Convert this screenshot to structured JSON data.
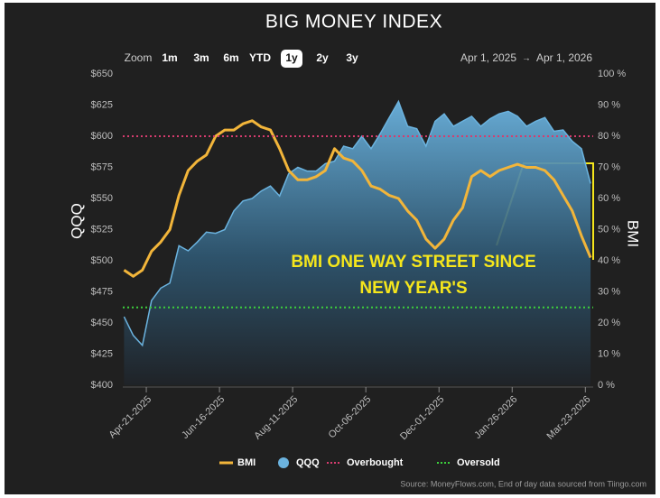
{
  "chart_data": {
    "type": "line",
    "title": "BIG MONEY INDEX",
    "zoom": {
      "label": "Zoom",
      "options": [
        "1m",
        "3m",
        "6m",
        "YTD",
        "1y",
        "2y",
        "3y"
      ],
      "selected": 4
    },
    "range": {
      "start": "Apr 1, 2025",
      "separator": "→",
      "end": "Apr 1, 2026"
    },
    "ylabel": "QQQ",
    "y2label": "BMI",
    "x": [
      "2025-04-04",
      "2025-04-11",
      "2025-04-18",
      "2025-04-25",
      "2025-05-02",
      "2025-05-09",
      "2025-05-16",
      "2025-05-23",
      "2025-05-30",
      "2025-06-06",
      "2025-06-13",
      "2025-06-20",
      "2025-06-27",
      "2025-07-04",
      "2025-07-11",
      "2025-07-18",
      "2025-07-25",
      "2025-08-01",
      "2025-08-08",
      "2025-08-15",
      "2025-08-22",
      "2025-08-29",
      "2025-09-05",
      "2025-09-12",
      "2025-09-19",
      "2025-09-26",
      "2025-10-03",
      "2025-10-10",
      "2025-10-17",
      "2025-10-24",
      "2025-10-31",
      "2025-11-07",
      "2025-11-14",
      "2025-11-21",
      "2025-11-28",
      "2025-12-05",
      "2025-12-12",
      "2025-12-19",
      "2025-12-26",
      "2026-01-02",
      "2026-01-09",
      "2026-01-16",
      "2026-01-23",
      "2026-01-30",
      "2026-02-06",
      "2026-02-13",
      "2026-02-20",
      "2026-02-27",
      "2026-03-06",
      "2026-03-13",
      "2026-03-20",
      "2026-03-27"
    ],
    "series": [
      {
        "name": "BMI",
        "color": "#f2b53a",
        "axis": "y2",
        "area": false,
        "marker": "line",
        "values": [
          37,
          35,
          37,
          43,
          46,
          50,
          61,
          69,
          72,
          74,
          80,
          82,
          82,
          84,
          85,
          83,
          82,
          76,
          69,
          66,
          66,
          67,
          69,
          76,
          73,
          72,
          69,
          64,
          63,
          61,
          60,
          56,
          53,
          47,
          44,
          47,
          53,
          57,
          67,
          69,
          67,
          69,
          70,
          71,
          70,
          70,
          69,
          66,
          61,
          56,
          48,
          41
        ]
      },
      {
        "name": "QQQ",
        "color": "#6bb3df",
        "axis": "y",
        "area": true,
        "marker": "circle",
        "values": [
          455,
          440,
          432,
          468,
          478,
          482,
          512,
          508,
          515,
          523,
          522,
          525,
          540,
          548,
          550,
          556,
          560,
          552,
          570,
          575,
          572,
          572,
          578,
          580,
          592,
          590,
          600,
          590,
          602,
          615,
          628,
          608,
          606,
          592,
          612,
          618,
          608,
          612,
          616,
          608,
          614,
          618,
          620,
          616,
          608,
          612,
          615,
          604,
          605,
          596,
          590,
          562
        ]
      }
    ],
    "reference_lines": [
      {
        "name": "Overbought",
        "color": "#d63c6e",
        "axis": "y2",
        "value": 80
      },
      {
        "name": "Oversold",
        "color": "#3ccf3c",
        "axis": "y2",
        "value": 25
      }
    ],
    "xlim": [
      "2025-04-03",
      "2026-03-29"
    ],
    "xticks": [
      {
        "value": "2025-04-21",
        "label": "Apr-21-2025"
      },
      {
        "value": "2025-06-16",
        "label": "Jun-16-2025"
      },
      {
        "value": "2025-08-11",
        "label": "Aug-11-2025"
      },
      {
        "value": "2025-10-06",
        "label": "Oct-06-2025"
      },
      {
        "value": "2025-12-01",
        "label": "Dec-01-2025"
      },
      {
        "value": "2026-01-26",
        "label": "Jan-26-2026"
      },
      {
        "value": "2026-03-23",
        "label": "Mar-23-2026"
      }
    ],
    "ylim": [
      400,
      650
    ],
    "yticks": [
      {
        "value": 400,
        "label": "$400"
      },
      {
        "value": 425,
        "label": "$425"
      },
      {
        "value": 450,
        "label": "$450"
      },
      {
        "value": 475,
        "label": "$475"
      },
      {
        "value": 500,
        "label": "$500"
      },
      {
        "value": 525,
        "label": "$525"
      },
      {
        "value": 550,
        "label": "$550"
      },
      {
        "value": 575,
        "label": "$575"
      },
      {
        "value": 600,
        "label": "$600"
      },
      {
        "value": 625,
        "label": "$625"
      },
      {
        "value": 650,
        "label": "$650"
      }
    ],
    "y2lim": [
      0,
      100
    ],
    "y2ticks": [
      {
        "value": 0,
        "label": "0 %"
      },
      {
        "value": 10,
        "label": "10 %"
      },
      {
        "value": 20,
        "label": "20 %"
      },
      {
        "value": 30,
        "label": "30 %"
      },
      {
        "value": 40,
        "label": "40 %"
      },
      {
        "value": 50,
        "label": "50 %"
      },
      {
        "value": 60,
        "label": "60 %"
      },
      {
        "value": 70,
        "label": "70 %"
      },
      {
        "value": 80,
        "label": "80 %"
      },
      {
        "value": 90,
        "label": "90 %"
      },
      {
        "value": 100,
        "label": "100 %"
      }
    ],
    "grid": false,
    "annotation": {
      "lines": [
        "BMI ONE WAY STREET SINCE",
        "NEW YEAR'S"
      ],
      "color": "#f5e61c"
    },
    "source": "Source: MoneyFlows.com, End of day data sourced from Tiingo.com"
  }
}
